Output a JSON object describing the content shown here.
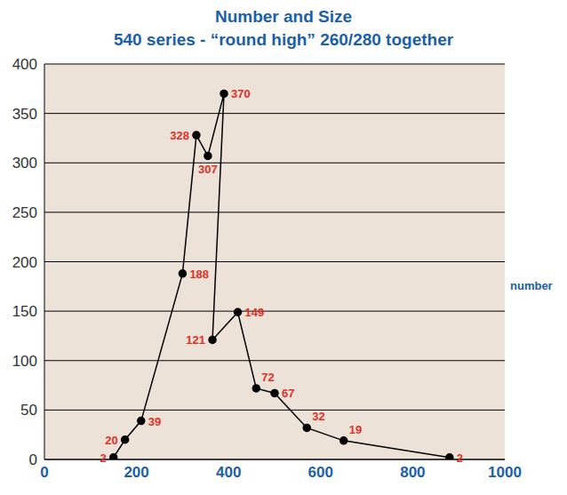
{
  "chart_data": {
    "type": "line",
    "title": "Number and Size",
    "subtitle": "540 series - “round high” 260/280 together",
    "annotation": "number",
    "x": [
      150,
      175,
      210,
      300,
      330,
      355,
      390,
      365,
      420,
      460,
      500,
      570,
      650,
      880
    ],
    "values": [
      2,
      20,
      39,
      188,
      328,
      307,
      370,
      121,
      149,
      72,
      67,
      32,
      19,
      2
    ],
    "color": "#000000",
    "marker": "circle",
    "line_style": "solid",
    "data_labels": true,
    "grid": true,
    "xlim": [
      0,
      1000
    ],
    "xticks": [
      0,
      200,
      400,
      600,
      800,
      1000
    ],
    "ylim": [
      0,
      400
    ],
    "yticks": [
      0,
      50,
      100,
      150,
      200,
      250,
      300,
      350,
      400
    ]
  }
}
